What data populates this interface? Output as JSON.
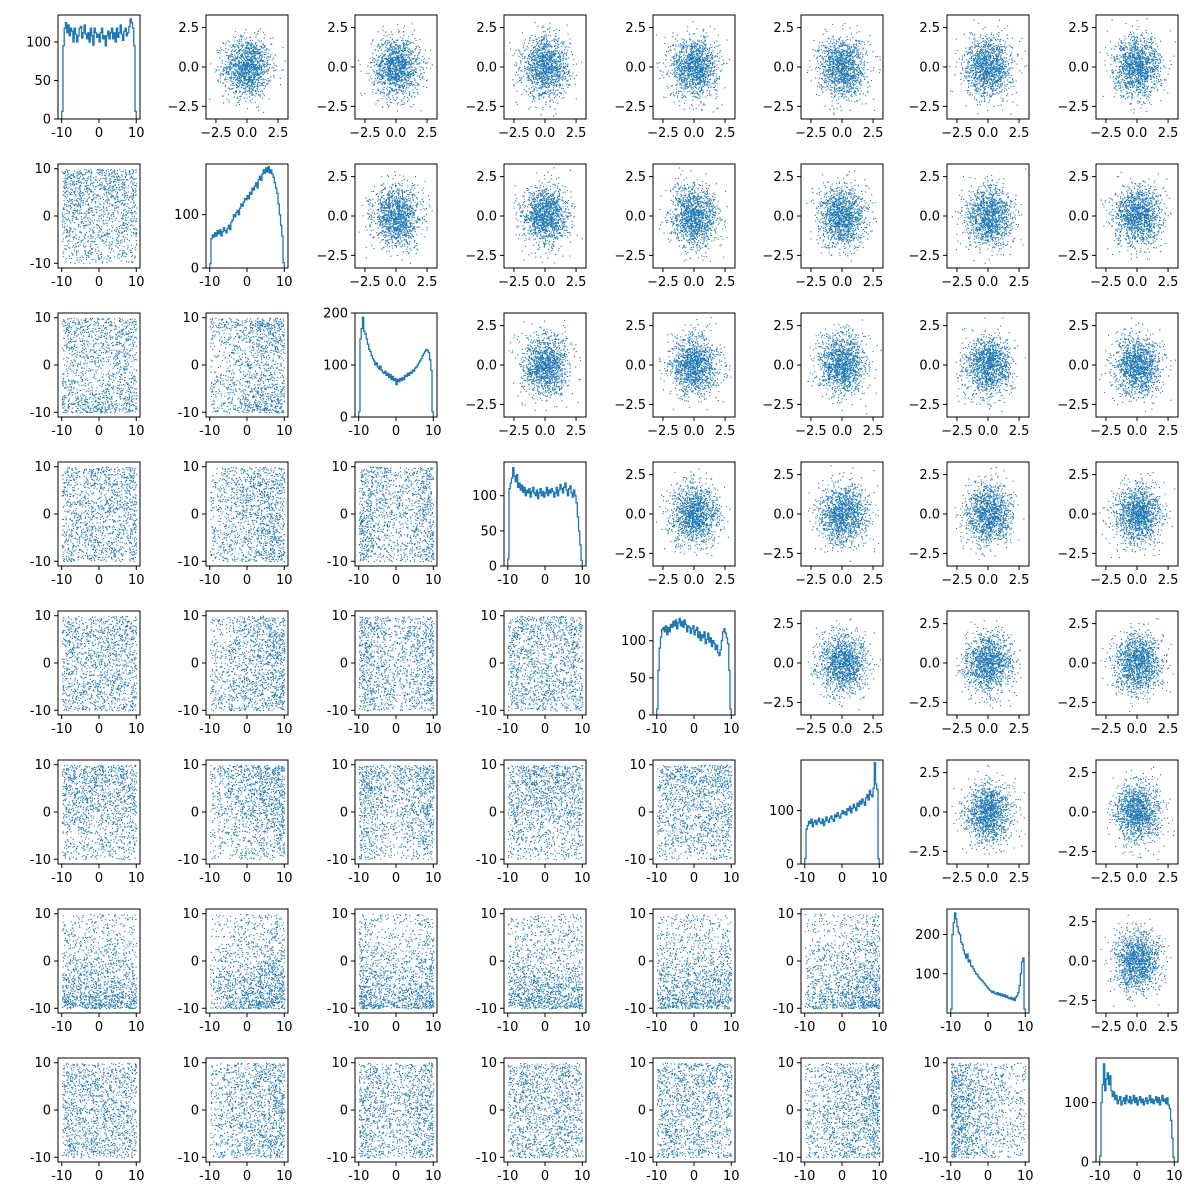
{
  "chart_data": {
    "type": "pairplot",
    "title": "",
    "grid": false,
    "legend": "none",
    "colors": {
      "marks": "#1f77b4",
      "background": "#ffffff",
      "axes": "#000000"
    },
    "variables": [
      {
        "kind": "uniform",
        "range": [
          -10,
          10
        ]
      },
      {
        "kind": "ramp-up",
        "range": [
          -10,
          10
        ]
      },
      {
        "kind": "bimodal",
        "range": [
          -10,
          10
        ]
      },
      {
        "kind": "uniform",
        "range": [
          -10,
          10
        ]
      },
      {
        "kind": "uniform",
        "range": [
          -10,
          10
        ]
      },
      {
        "kind": "ramp-up",
        "range": [
          -10,
          10
        ]
      },
      {
        "kind": "skewed",
        "range": [
          -10,
          10
        ]
      },
      {
        "kind": "uniform",
        "range": [
          -10,
          10
        ]
      }
    ],
    "layout": {
      "diagonal": "histogram of each variable (step line)",
      "lower_triangle": "scatter of raw variables, x and y in [-10, 10]",
      "upper_triangle": "scatter of standardized variables, x and y in [-3, 3]"
    },
    "lower_axes": {
      "xlim": [
        -11,
        11
      ],
      "ylim": [
        -11,
        11
      ],
      "xticks": [
        "-10",
        "0",
        "10"
      ],
      "yticks": [
        "-10",
        "0",
        "10"
      ]
    },
    "upper_axes": {
      "xlim": [
        -3.3,
        3.3
      ],
      "ylim": [
        -3.3,
        3.3
      ],
      "xticks": [
        "−2.5",
        "0.0",
        "2.5"
      ],
      "yticks": [
        "−2.5",
        "0.0",
        "2.5"
      ],
      "xtick_values": [
        -2.5,
        0,
        2.5
      ],
      "ytick_values": [
        -2.5,
        0,
        2.5
      ]
    },
    "diagonal_axes": [
      {
        "ymax": 135,
        "yticks": [
          0,
          50,
          100
        ],
        "ytick_labels": [
          "0",
          "50",
          "100"
        ],
        "xticks": [
          "-10",
          "0",
          "10"
        ]
      },
      {
        "ymax": 195,
        "yticks": [
          0,
          100
        ],
        "ytick_labels": [
          "0",
          "100"
        ],
        "xticks": [
          "-10",
          "0",
          "10"
        ]
      },
      {
        "ymax": 200,
        "yticks": [
          0,
          100,
          200
        ],
        "ytick_labels": [
          "0",
          "100",
          "200"
        ],
        "xticks": [
          "-10",
          "0",
          "10"
        ]
      },
      {
        "ymax": 148,
        "yticks": [
          0,
          50,
          100
        ],
        "ytick_labels": [
          "0",
          "50",
          "100"
        ],
        "xticks": [
          "-10",
          "0",
          "10"
        ]
      },
      {
        "ymax": 140,
        "yticks": [
          0,
          50,
          100
        ],
        "ytick_labels": [
          "0",
          "50",
          "100"
        ],
        "xticks": [
          "-10",
          "0",
          "10"
        ]
      },
      {
        "ymax": 195,
        "yticks": [
          0,
          100
        ],
        "ytick_labels": [
          "0",
          "100"
        ],
        "xticks": [
          "-10",
          "0",
          "10"
        ]
      },
      {
        "ymax": 265,
        "yticks": [
          100,
          200
        ],
        "ytick_labels": [
          "100",
          "200"
        ],
        "xticks": [
          "-10",
          "0",
          "10"
        ]
      },
      {
        "ymax": 175,
        "yticks": [
          0,
          100
        ],
        "ytick_labels": [
          "0",
          "100"
        ],
        "xticks": [
          "-10",
          "0",
          "10"
        ]
      }
    ],
    "histograms": [
      {
        "bins": 60,
        "counts": [
          10,
          95,
          118,
          125,
          112,
          122,
          108,
          118,
          114,
          100,
          118,
          110,
          100,
          108,
          118,
          120,
          105,
          112,
          122,
          110,
          104,
          112,
          100,
          118,
          108,
          96,
          118,
          112,
          106,
          110,
          100,
          112,
          118,
          104,
          108,
          95,
          108,
          114,
          104,
          112,
          118,
          104,
          112,
          100,
          118,
          106,
          112,
          122,
          110,
          102,
          114,
          118,
          108,
          112,
          120,
          130,
          125,
          118,
          95,
          10
        ]
      },
      {
        "bins": 60,
        "counts": [
          8,
          55,
          62,
          58,
          66,
          60,
          70,
          64,
          72,
          60,
          68,
          76,
          70,
          66,
          74,
          80,
          72,
          86,
          90,
          100,
          96,
          104,
          108,
          100,
          112,
          120,
          116,
          124,
          130,
          128,
          136,
          130,
          142,
          138,
          150,
          146,
          154,
          160,
          150,
          166,
          172,
          164,
          176,
          184,
          178,
          188,
          180,
          190,
          178,
          184,
          176,
          170,
          160,
          150,
          140,
          120,
          100,
          80,
          60,
          10
        ]
      },
      {
        "bins": 60,
        "counts": [
          10,
          150,
          170,
          192,
          165,
          160,
          150,
          140,
          130,
          126,
          118,
          112,
          108,
          100,
          104,
          96,
          92,
          98,
          90,
          86,
          84,
          88,
          80,
          84,
          76,
          82,
          72,
          78,
          70,
          74,
          62,
          72,
          68,
          74,
          70,
          76,
          72,
          80,
          78,
          84,
          80,
          86,
          84,
          90,
          88,
          94,
          96,
          100,
          104,
          108,
          112,
          118,
          122,
          126,
          130,
          128,
          124,
          110,
          90,
          10
        ]
      },
      {
        "bins": 60,
        "counts": [
          10,
          110,
          118,
          125,
          140,
          128,
          120,
          130,
          112,
          118,
          108,
          115,
          105,
          112,
          100,
          108,
          104,
          110,
          98,
          106,
          112,
          104,
          100,
          108,
          96,
          104,
          110,
          100,
          106,
          98,
          104,
          112,
          100,
          108,
          104,
          110,
          106,
          98,
          104,
          112,
          100,
          108,
          116,
          110,
          104,
          112,
          118,
          108,
          100,
          110,
          114,
          104,
          98,
          108,
          100,
          90,
          70,
          50,
          30,
          8
        ]
      },
      {
        "bins": 60,
        "counts": [
          8,
          60,
          90,
          105,
          115,
          118,
          112,
          120,
          108,
          118,
          112,
          122,
          118,
          126,
          120,
          128,
          116,
          124,
          130,
          120,
          126,
          118,
          128,
          122,
          112,
          120,
          118,
          110,
          116,
          120,
          108,
          114,
          118,
          104,
          112,
          100,
          108,
          104,
          112,
          96,
          102,
          110,
          98,
          104,
          92,
          100,
          96,
          88,
          94,
          84,
          80,
          88,
          100,
          112,
          116,
          110,
          104,
          96,
          60,
          8
        ]
      },
      {
        "bins": 60,
        "counts": [
          10,
          65,
          72,
          80,
          76,
          84,
          70,
          78,
          82,
          74,
          80,
          86,
          78,
          76,
          84,
          72,
          80,
          88,
          82,
          78,
          86,
          90,
          84,
          80,
          92,
          88,
          96,
          90,
          86,
          94,
          100,
          94,
          98,
          92,
          104,
          100,
          108,
          96,
          104,
          112,
          106,
          100,
          114,
          108,
          118,
          112,
          122,
          116,
          110,
          124,
          130,
          120,
          138,
          130,
          126,
          142,
          190,
          150,
          140,
          10
        ]
      },
      {
        "bins": 60,
        "counts": [
          10,
          200,
          230,
          255,
          240,
          220,
          205,
          200,
          180,
          175,
          160,
          150,
          140,
          150,
          130,
          135,
          120,
          118,
          112,
          106,
          100,
          98,
          92,
          88,
          85,
          82,
          78,
          74,
          70,
          66,
          62,
          58,
          56,
          52,
          55,
          50,
          48,
          52,
          46,
          50,
          44,
          48,
          42,
          46,
          40,
          44,
          38,
          36,
          40,
          34,
          38,
          32,
          40,
          44,
          52,
          70,
          100,
          130,
          140,
          10
        ]
      },
      {
        "bins": 60,
        "counts": [
          10,
          100,
          130,
          165,
          120,
          140,
          150,
          130,
          145,
          120,
          110,
          118,
          105,
          112,
          98,
          104,
          110,
          96,
          102,
          108,
          98,
          112,
          104,
          100,
          110,
          98,
          104,
          112,
          100,
          108,
          96,
          104,
          110,
          100,
          106,
          96,
          102,
          108,
          98,
          104,
          112,
          100,
          106,
          98,
          104,
          110,
          100,
          108,
          96,
          104,
          112,
          102,
          106,
          98,
          108,
          96,
          90,
          70,
          40,
          8
        ]
      }
    ]
  }
}
